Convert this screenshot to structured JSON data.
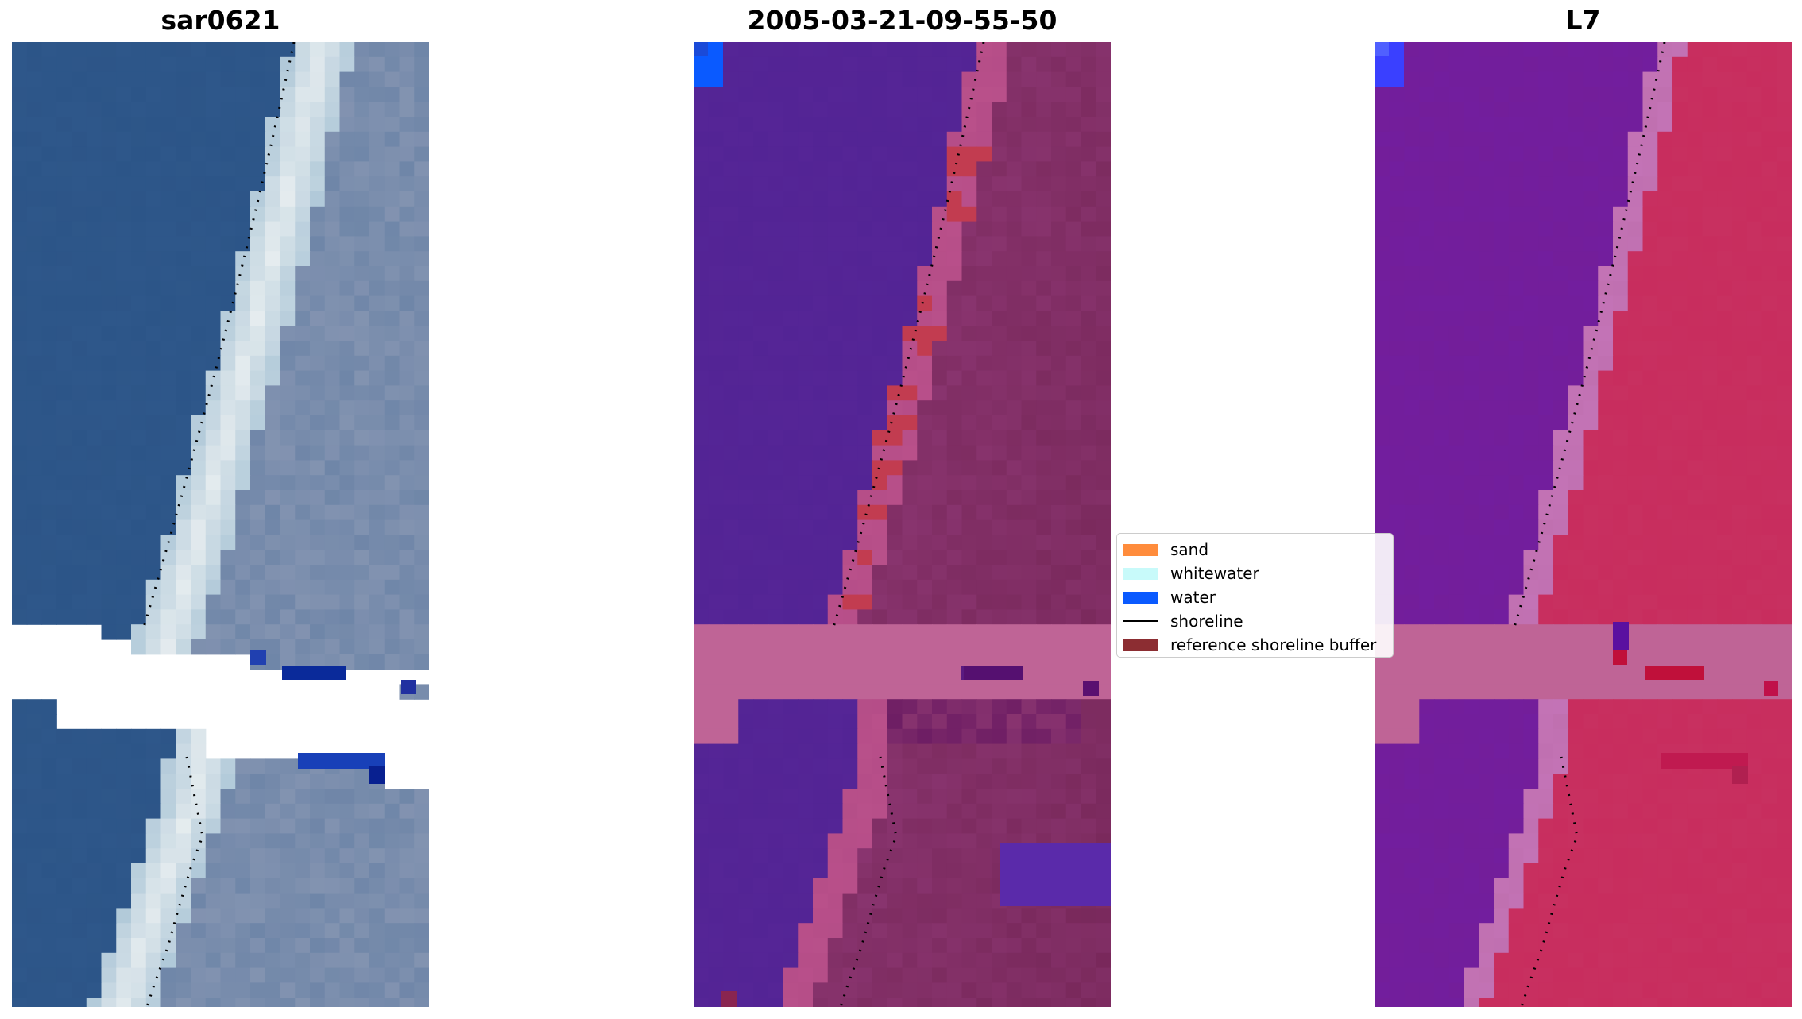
{
  "panels": [
    {
      "title": "sar0621",
      "palette": "rgb"
    },
    {
      "title": "2005-03-21-09-55-50",
      "palette": "classified"
    },
    {
      "title": "L7",
      "palette": "nir"
    }
  ],
  "legend": {
    "items": [
      {
        "label": "sand",
        "color": "#ff8c3c"
      },
      {
        "label": "whitewater",
        "color": "#c8fafa"
      },
      {
        "label": "water",
        "color": "#0a5aff"
      },
      {
        "label": "shoreline",
        "color": "#000000",
        "kind": "line"
      },
      {
        "label": "reference shoreline buffer",
        "color": "#8c2d32"
      }
    ]
  },
  "colors": {
    "sea_rgb": "#2e578a",
    "beach_rgb": "#e8eef0",
    "land_rgb": "#6f86a8",
    "sea_classified": "#552596",
    "beach_classified": "#b9508a",
    "land_classified": "#8a3570",
    "sea_nir": "#731e9a",
    "land_nir": "#c83060",
    "buffer_band": "#bf6496",
    "shoreline": "#000000"
  }
}
